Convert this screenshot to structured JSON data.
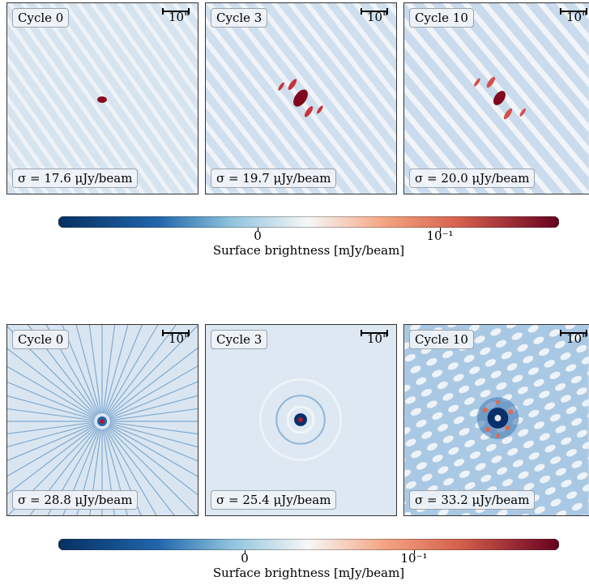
{
  "rows": [
    {
      "panels": [
        {
          "cycle": "Cycle 0",
          "sigma": "σ = 17.6 μJy/beam",
          "scale": "10\""
        },
        {
          "cycle": "Cycle 3",
          "sigma": "σ = 19.7 μJy/beam",
          "scale": "10\""
        },
        {
          "cycle": "Cycle 10",
          "sigma": "σ = 20.0 μJy/beam",
          "scale": "10\""
        }
      ],
      "colorbar": {
        "tick_zero": "0",
        "tick_log": "10⁻¹",
        "label": "Surface brightness [mJy/beam]"
      }
    },
    {
      "panels": [
        {
          "cycle": "Cycle 0",
          "sigma": "σ = 28.8 μJy/beam",
          "scale": "10\""
        },
        {
          "cycle": "Cycle 3",
          "sigma": "σ = 25.4 μJy/beam",
          "scale": "10\""
        },
        {
          "cycle": "Cycle 10",
          "sigma": "σ = 33.2 μJy/beam",
          "scale": "10\""
        }
      ],
      "colorbar": {
        "tick_zero": "0",
        "tick_log": "10⁻¹",
        "label": "Surface brightness [mJy/beam]"
      }
    }
  ],
  "colors": {
    "low": "#08306b",
    "mid": "#f7f7f7",
    "high": "#67001f",
    "background": "#dfe9f2"
  }
}
